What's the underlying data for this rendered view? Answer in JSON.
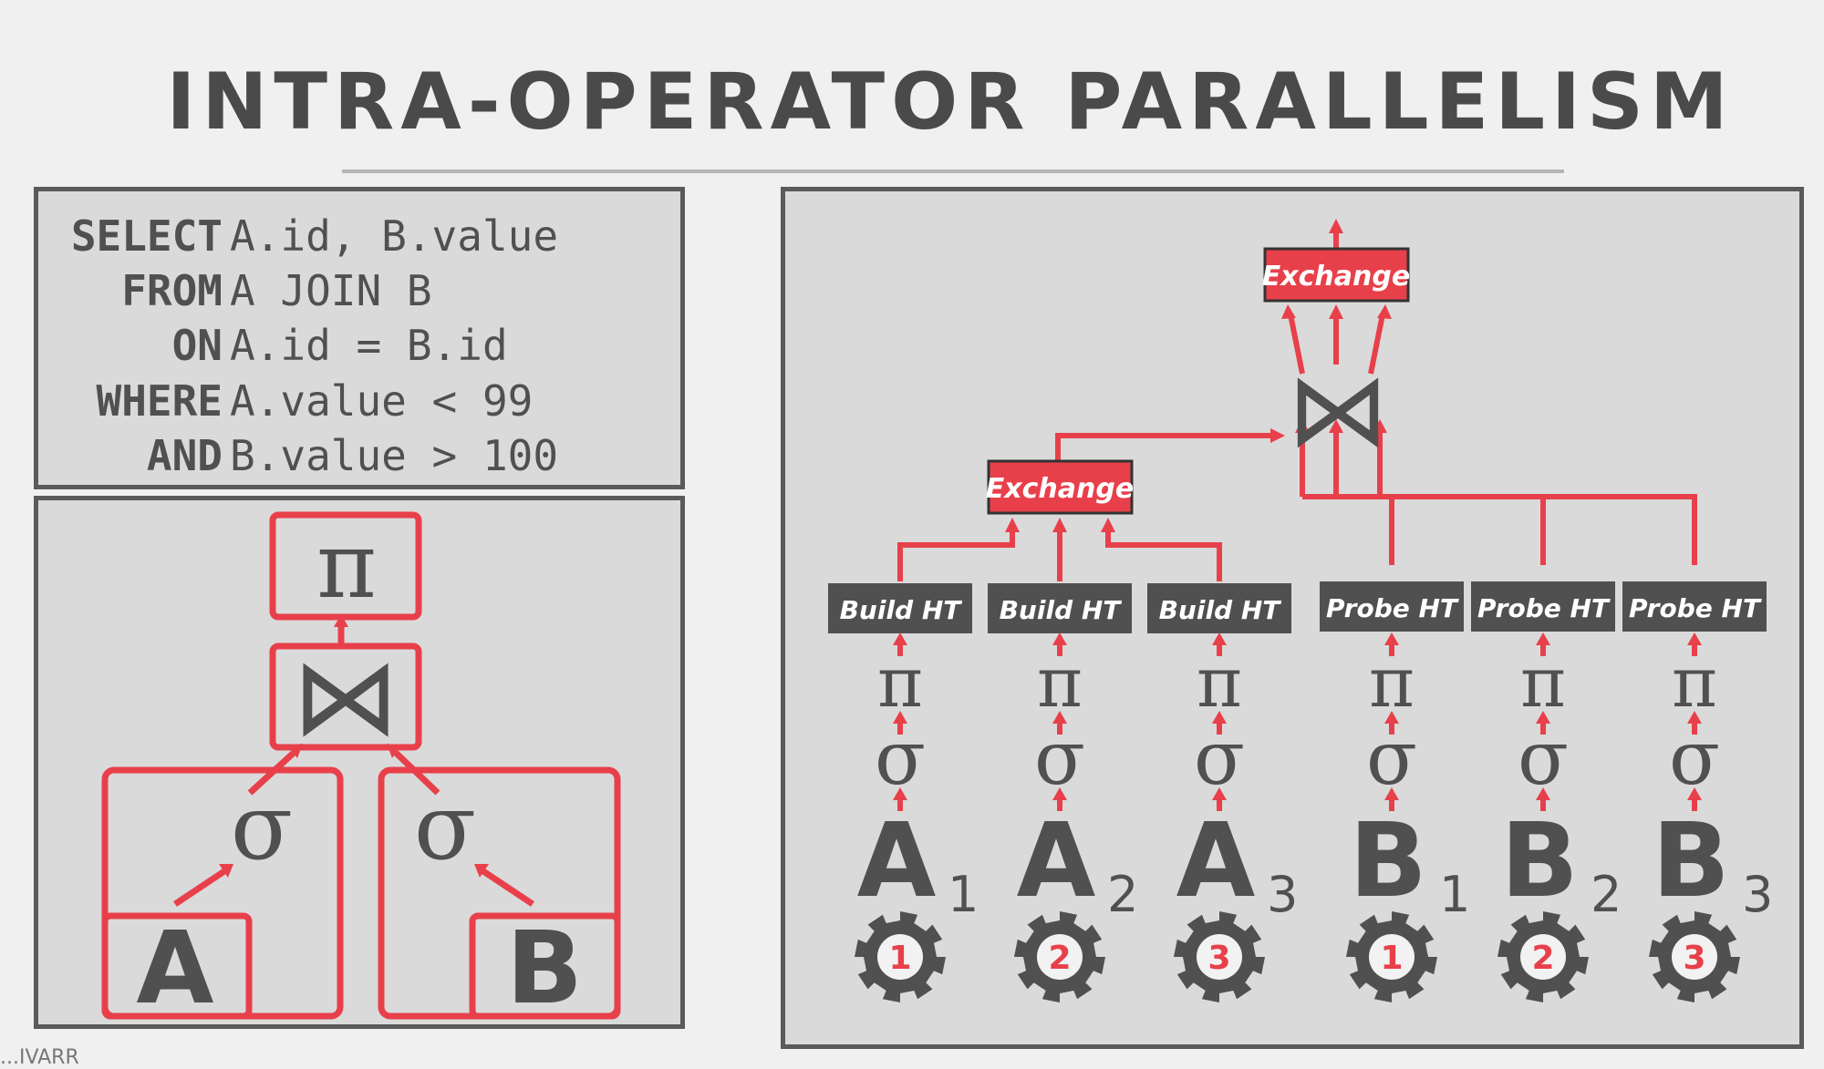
{
  "title": "INTRA-OPERATOR PARALLELISM",
  "sql": [
    {
      "keyword": "SELECT",
      "rest": "A.id, B.value"
    },
    {
      "keyword": "FROM",
      "rest_kw": "",
      "rest": "A JOIN B"
    },
    {
      "keyword": "ON",
      "rest": "A.id = B.id"
    },
    {
      "keyword": "WHERE",
      "rest": "A.value < 99"
    },
    {
      "keyword": "AND",
      "rest": "B.value > 100"
    }
  ],
  "logical_tree": {
    "projection": "π",
    "join": "⋈",
    "selection_left": "σ",
    "selection_right": "σ",
    "table_left": "A",
    "table_right": "B"
  },
  "plan": {
    "exchange_top": "Exchange",
    "exchange_build": "Exchange",
    "join": "⋈",
    "workers": [
      {
        "op": "Build HT",
        "proj": "π",
        "sel": "σ",
        "table": "A",
        "sub": "1",
        "worker": "1"
      },
      {
        "op": "Build HT",
        "proj": "π",
        "sel": "σ",
        "table": "A",
        "sub": "2",
        "worker": "2"
      },
      {
        "op": "Build HT",
        "proj": "π",
        "sel": "σ",
        "table": "A",
        "sub": "3",
        "worker": "3"
      },
      {
        "op": "Probe HT",
        "proj": "π",
        "sel": "σ",
        "table": "B",
        "sub": "1",
        "worker": "1"
      },
      {
        "op": "Probe HT",
        "proj": "π",
        "sel": "σ",
        "table": "B",
        "sub": "2",
        "worker": "2"
      },
      {
        "op": "Probe HT",
        "proj": "π",
        "sel": "σ",
        "table": "B",
        "sub": "3",
        "worker": "3"
      }
    ]
  },
  "colors": {
    "accent_red": "#e8404a",
    "dark_gray": "#505050",
    "panel_gray": "#dadada"
  },
  "footer": "...IVARR"
}
